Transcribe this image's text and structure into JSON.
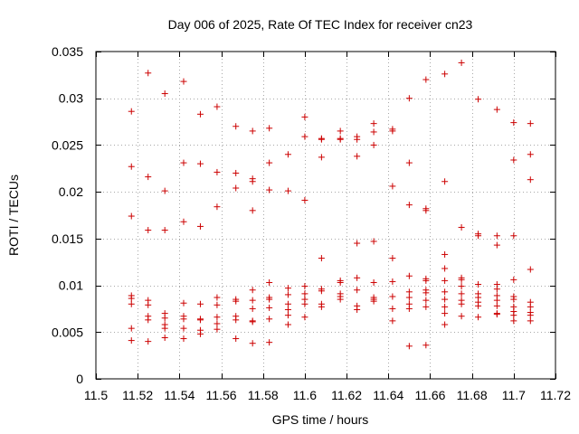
{
  "chart_data": {
    "type": "scatter",
    "title": "Day 006 of 2025, Rate Of TEC Index for receiver cn23",
    "xlabel": "GPS time / hours",
    "ylabel": "ROTI / TECUs",
    "xlim": [
      11.5,
      11.72
    ],
    "ylim": [
      0,
      0.035
    ],
    "xticks": [
      11.5,
      11.52,
      11.54,
      11.56,
      11.58,
      11.6,
      11.62,
      11.64,
      11.66,
      11.68,
      11.7,
      11.72
    ],
    "xtick_labels": [
      "11.5",
      "11.52",
      "11.54",
      "11.56",
      "11.58",
      "11.6",
      "11.62",
      "11.64",
      "11.66",
      "11.68",
      "11.7",
      "11.72"
    ],
    "yticks": [
      0,
      0.005,
      0.01,
      0.015,
      0.02,
      0.025,
      0.03,
      0.035
    ],
    "ytick_labels": [
      "0",
      "0.005",
      "0.01",
      "0.015",
      "0.02",
      "0.025",
      "0.03",
      "0.035"
    ],
    "grid": true,
    "marker": "+",
    "color": "#cc0000",
    "series": [
      {
        "name": "ROTI",
        "points": [
          [
            11.517,
            0.0286
          ],
          [
            11.517,
            0.0227
          ],
          [
            11.517,
            0.0174
          ],
          [
            11.517,
            0.0089
          ],
          [
            11.517,
            0.0086
          ],
          [
            11.517,
            0.008
          ],
          [
            11.517,
            0.0054
          ],
          [
            11.517,
            0.0041
          ],
          [
            11.525,
            0.0327
          ],
          [
            11.525,
            0.0216
          ],
          [
            11.525,
            0.0159
          ],
          [
            11.525,
            0.0084
          ],
          [
            11.525,
            0.0079
          ],
          [
            11.525,
            0.0067
          ],
          [
            11.525,
            0.0063
          ],
          [
            11.525,
            0.004
          ],
          [
            11.533,
            0.0305
          ],
          [
            11.533,
            0.0201
          ],
          [
            11.533,
            0.0159
          ],
          [
            11.533,
            0.007
          ],
          [
            11.533,
            0.0065
          ],
          [
            11.533,
            0.0058
          ],
          [
            11.533,
            0.0054
          ],
          [
            11.533,
            0.0044
          ],
          [
            11.542,
            0.0318
          ],
          [
            11.542,
            0.0231
          ],
          [
            11.542,
            0.0168
          ],
          [
            11.542,
            0.0081
          ],
          [
            11.542,
            0.0067
          ],
          [
            11.542,
            0.0064
          ],
          [
            11.542,
            0.0054
          ],
          [
            11.542,
            0.0043
          ],
          [
            11.55,
            0.0283
          ],
          [
            11.55,
            0.023
          ],
          [
            11.55,
            0.0163
          ],
          [
            11.55,
            0.008
          ],
          [
            11.55,
            0.0064
          ],
          [
            11.55,
            0.0063
          ],
          [
            11.55,
            0.0052
          ],
          [
            11.55,
            0.0048
          ],
          [
            11.558,
            0.0291
          ],
          [
            11.558,
            0.0221
          ],
          [
            11.558,
            0.0184
          ],
          [
            11.558,
            0.0087
          ],
          [
            11.558,
            0.0079
          ],
          [
            11.558,
            0.0066
          ],
          [
            11.558,
            0.0059
          ],
          [
            11.558,
            0.0053
          ],
          [
            11.567,
            0.027
          ],
          [
            11.567,
            0.022
          ],
          [
            11.567,
            0.0204
          ],
          [
            11.567,
            0.0085
          ],
          [
            11.567,
            0.0083
          ],
          [
            11.567,
            0.0067
          ],
          [
            11.567,
            0.0063
          ],
          [
            11.567,
            0.0043
          ],
          [
            11.575,
            0.0265
          ],
          [
            11.575,
            0.0214
          ],
          [
            11.575,
            0.0211
          ],
          [
            11.575,
            0.018
          ],
          [
            11.575,
            0.0095
          ],
          [
            11.575,
            0.0084
          ],
          [
            11.575,
            0.0075
          ],
          [
            11.575,
            0.0062
          ],
          [
            11.575,
            0.0061
          ],
          [
            11.575,
            0.0038
          ],
          [
            11.583,
            0.0268
          ],
          [
            11.583,
            0.0231
          ],
          [
            11.583,
            0.0202
          ],
          [
            11.583,
            0.0103
          ],
          [
            11.583,
            0.0087
          ],
          [
            11.583,
            0.0085
          ],
          [
            11.583,
            0.0076
          ],
          [
            11.583,
            0.0064
          ],
          [
            11.583,
            0.0039
          ],
          [
            11.592,
            0.024
          ],
          [
            11.592,
            0.0201
          ],
          [
            11.592,
            0.0097
          ],
          [
            11.592,
            0.009
          ],
          [
            11.592,
            0.008
          ],
          [
            11.592,
            0.0074
          ],
          [
            11.592,
            0.0068
          ],
          [
            11.592,
            0.0058
          ],
          [
            11.6,
            0.028
          ],
          [
            11.6,
            0.0259
          ],
          [
            11.6,
            0.0191
          ],
          [
            11.6,
            0.0099
          ],
          [
            11.6,
            0.0091
          ],
          [
            11.6,
            0.0085
          ],
          [
            11.6,
            0.008
          ],
          [
            11.6,
            0.0066
          ],
          [
            11.608,
            0.0257
          ],
          [
            11.608,
            0.0256
          ],
          [
            11.608,
            0.0237
          ],
          [
            11.608,
            0.0129
          ],
          [
            11.608,
            0.0096
          ],
          [
            11.608,
            0.0094
          ],
          [
            11.608,
            0.008
          ],
          [
            11.608,
            0.0077
          ],
          [
            11.617,
            0.0265
          ],
          [
            11.617,
            0.0257
          ],
          [
            11.617,
            0.0256
          ],
          [
            11.617,
            0.0105
          ],
          [
            11.617,
            0.0103
          ],
          [
            11.617,
            0.0091
          ],
          [
            11.617,
            0.0088
          ],
          [
            11.617,
            0.0085
          ],
          [
            11.625,
            0.0259
          ],
          [
            11.625,
            0.0256
          ],
          [
            11.625,
            0.0238
          ],
          [
            11.625,
            0.0145
          ],
          [
            11.625,
            0.0108
          ],
          [
            11.625,
            0.0095
          ],
          [
            11.625,
            0.0078
          ],
          [
            11.625,
            0.0074
          ],
          [
            11.633,
            0.0273
          ],
          [
            11.633,
            0.0264
          ],
          [
            11.633,
            0.025
          ],
          [
            11.633,
            0.0147
          ],
          [
            11.633,
            0.0103
          ],
          [
            11.633,
            0.0087
          ],
          [
            11.633,
            0.0085
          ],
          [
            11.633,
            0.0083
          ],
          [
            11.642,
            0.0267
          ],
          [
            11.642,
            0.0265
          ],
          [
            11.642,
            0.0206
          ],
          [
            11.642,
            0.0129
          ],
          [
            11.642,
            0.0104
          ],
          [
            11.642,
            0.0088
          ],
          [
            11.642,
            0.0075
          ],
          [
            11.642,
            0.0062
          ],
          [
            11.65,
            0.03
          ],
          [
            11.65,
            0.0231
          ],
          [
            11.65,
            0.0186
          ],
          [
            11.65,
            0.011
          ],
          [
            11.65,
            0.0093
          ],
          [
            11.65,
            0.0087
          ],
          [
            11.65,
            0.008
          ],
          [
            11.65,
            0.0075
          ],
          [
            11.65,
            0.0035
          ],
          [
            11.658,
            0.032
          ],
          [
            11.658,
            0.0182
          ],
          [
            11.658,
            0.018
          ],
          [
            11.658,
            0.0107
          ],
          [
            11.658,
            0.0105
          ],
          [
            11.658,
            0.0095
          ],
          [
            11.658,
            0.0092
          ],
          [
            11.658,
            0.0084
          ],
          [
            11.658,
            0.0077
          ],
          [
            11.658,
            0.0036
          ],
          [
            11.667,
            0.0326
          ],
          [
            11.667,
            0.0211
          ],
          [
            11.667,
            0.0133
          ],
          [
            11.667,
            0.0118
          ],
          [
            11.667,
            0.0105
          ],
          [
            11.667,
            0.0093
          ],
          [
            11.667,
            0.0085
          ],
          [
            11.667,
            0.0077
          ],
          [
            11.667,
            0.007
          ],
          [
            11.667,
            0.0058
          ],
          [
            11.675,
            0.0338
          ],
          [
            11.675,
            0.0162
          ],
          [
            11.675,
            0.0108
          ],
          [
            11.675,
            0.0106
          ],
          [
            11.675,
            0.0099
          ],
          [
            11.675,
            0.0091
          ],
          [
            11.675,
            0.0084
          ],
          [
            11.675,
            0.008
          ],
          [
            11.675,
            0.0067
          ],
          [
            11.683,
            0.0299
          ],
          [
            11.683,
            0.0155
          ],
          [
            11.683,
            0.0153
          ],
          [
            11.683,
            0.0101
          ],
          [
            11.683,
            0.0091
          ],
          [
            11.683,
            0.0087
          ],
          [
            11.683,
            0.0082
          ],
          [
            11.683,
            0.0078
          ],
          [
            11.683,
            0.0066
          ],
          [
            11.692,
            0.0288
          ],
          [
            11.692,
            0.0153
          ],
          [
            11.692,
            0.0143
          ],
          [
            11.692,
            0.0101
          ],
          [
            11.692,
            0.0096
          ],
          [
            11.692,
            0.0089
          ],
          [
            11.692,
            0.0084
          ],
          [
            11.692,
            0.0078
          ],
          [
            11.692,
            0.007
          ],
          [
            11.692,
            0.0069
          ],
          [
            11.7,
            0.0274
          ],
          [
            11.7,
            0.0234
          ],
          [
            11.7,
            0.0153
          ],
          [
            11.7,
            0.0106
          ],
          [
            11.7,
            0.0088
          ],
          [
            11.7,
            0.0085
          ],
          [
            11.7,
            0.0077
          ],
          [
            11.7,
            0.0072
          ],
          [
            11.7,
            0.0068
          ],
          [
            11.7,
            0.0062
          ],
          [
            11.708,
            0.0273
          ],
          [
            11.708,
            0.024
          ],
          [
            11.708,
            0.0213
          ],
          [
            11.708,
            0.0117
          ],
          [
            11.708,
            0.0082
          ],
          [
            11.708,
            0.0077
          ],
          [
            11.708,
            0.0071
          ],
          [
            11.708,
            0.0068
          ],
          [
            11.708,
            0.0062
          ]
        ]
      }
    ]
  }
}
